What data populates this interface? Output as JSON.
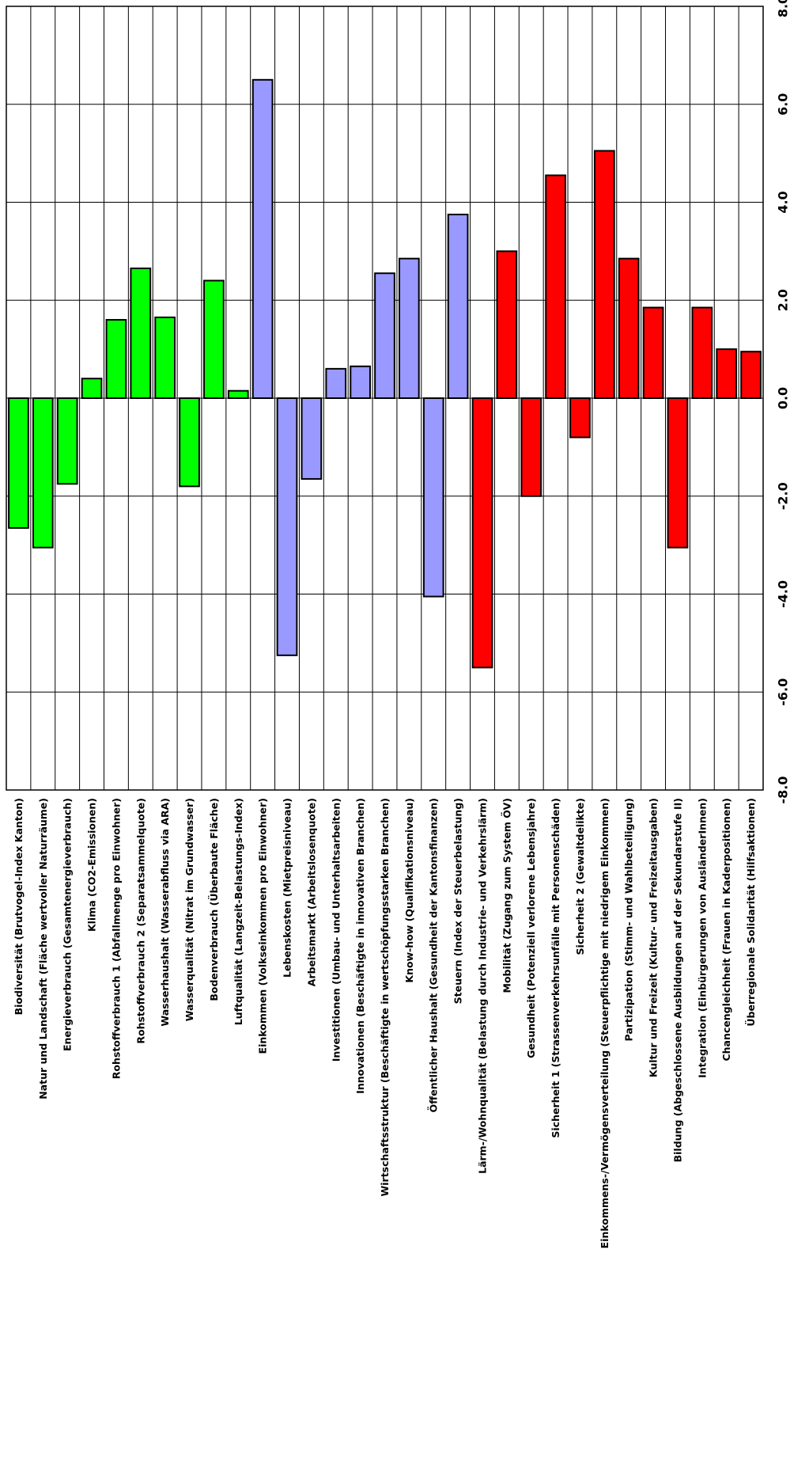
{
  "chart_data": {
    "type": "bar",
    "orientation": "rotated",
    "title": "",
    "xlabel": "",
    "ylabel": "",
    "ylim": [
      -8.0,
      8.0
    ],
    "ticks": [
      "-8.0",
      "-6.0",
      "-4.0",
      "-2.0",
      "0.0",
      "2.0",
      "4.0",
      "6.0",
      "8.0"
    ],
    "grid": true,
    "legend": "none",
    "colors": {
      "environment": "#00ff00",
      "economy": "#9999ff",
      "society": "#ff0000"
    },
    "categories": [
      {
        "label": "Biodiversität (Brutvogel-Index Kanton)",
        "value": -2.65,
        "group": "environment"
      },
      {
        "label": "Natur und Landschaft (Fläche wertvoller Naturräume)",
        "value": -3.05,
        "group": "environment"
      },
      {
        "label": "Energieverbrauch (Gesamtenergieverbrauch)",
        "value": -1.75,
        "group": "environment"
      },
      {
        "label": "Klima (CO2-Emissionen)",
        "value": 0.4,
        "group": "environment"
      },
      {
        "label": "Rohstoffverbrauch 1 (Abfallmenge pro Einwohner)",
        "value": 1.6,
        "group": "environment"
      },
      {
        "label": "Rohstoffverbrauch 2 (Separatsammelquote)",
        "value": 2.65,
        "group": "environment"
      },
      {
        "label": "Wasserhaushalt (Wasserabfluss via ARA)",
        "value": 1.65,
        "group": "environment"
      },
      {
        "label": "Wasserqualität (Nitrat im Grundwasser)",
        "value": -1.8,
        "group": "environment"
      },
      {
        "label": "Bodenverbrauch (Überbaute Fläche)",
        "value": 2.4,
        "group": "environment"
      },
      {
        "label": "Luftqualität (Langzeit-Belastungs-Index)",
        "value": 0.15,
        "group": "environment"
      },
      {
        "label": "Einkommen (Volkseinkommen pro Einwohner)",
        "value": 6.5,
        "group": "economy"
      },
      {
        "label": "Lebenskosten (Mietpreisniveau)",
        "value": -5.25,
        "group": "economy"
      },
      {
        "label": "Arbeitsmarkt (Arbeitslosenquote)",
        "value": -1.65,
        "group": "economy"
      },
      {
        "label": "Investitionen (Umbau- und Unterhaltsarbeiten)",
        "value": 0.6,
        "group": "economy"
      },
      {
        "label": "Innovationen (Beschäftigte in innovativen Branchen)",
        "value": 0.65,
        "group": "economy"
      },
      {
        "label": "Wirtschaftsstruktur (Beschäftigte in wertschöpfungsstarken Branchen)",
        "value": 2.55,
        "group": "economy"
      },
      {
        "label": "Know-how (Qualifikationsniveau)",
        "value": 2.85,
        "group": "economy"
      },
      {
        "label": "Öffentlicher Haushalt (Gesundheit der Kantonsfinanzen)",
        "value": -4.05,
        "group": "economy"
      },
      {
        "label": "Steuern (Index der Steuerbelastung)",
        "value": 3.75,
        "group": "economy"
      },
      {
        "label": "Lärm-/Wohnqualität (Belastung durch Industrie- und Verkehrslärm)",
        "value": -5.5,
        "group": "society"
      },
      {
        "label": "Mobilität (Zugang zum System ÖV)",
        "value": 3.0,
        "group": "society"
      },
      {
        "label": "Gesundheit (Potenziell verlorene Lebensjahre)",
        "value": -2.0,
        "group": "society"
      },
      {
        "label": "Sicherheit 1 (Strassenverkehrsunfälle mit Personenschäden)",
        "value": 4.55,
        "group": "society"
      },
      {
        "label": "Sicherheit 2 (Gewaltdelikte)",
        "value": -0.8,
        "group": "society"
      },
      {
        "label": "Einkommens-/Vermögensverteilung (Steuerpflichtige mit niedrigem Einkommen)",
        "value": 5.05,
        "group": "society"
      },
      {
        "label": "Partizipation (Stimm- und Wahlbeteiligung)",
        "value": 2.85,
        "group": "society"
      },
      {
        "label": "Kultur und Freizeit (Kultur- und Freizeitausgaben)",
        "value": 1.85,
        "group": "society"
      },
      {
        "label": "Bildung (Abgeschlossene Ausbildungen auf der Sekundarstufe II)",
        "value": -3.05,
        "group": "society"
      },
      {
        "label": "Integration (Einbürgerungen von AusländerInnen)",
        "value": 1.85,
        "group": "society"
      },
      {
        "label": "Chancengleichheit (Frauen in Kaderpositionen)",
        "value": 1.0,
        "group": "society"
      },
      {
        "label": "Überregionale Solidarität (Hilfsaktionen)",
        "value": 0.95,
        "group": "society"
      }
    ]
  }
}
